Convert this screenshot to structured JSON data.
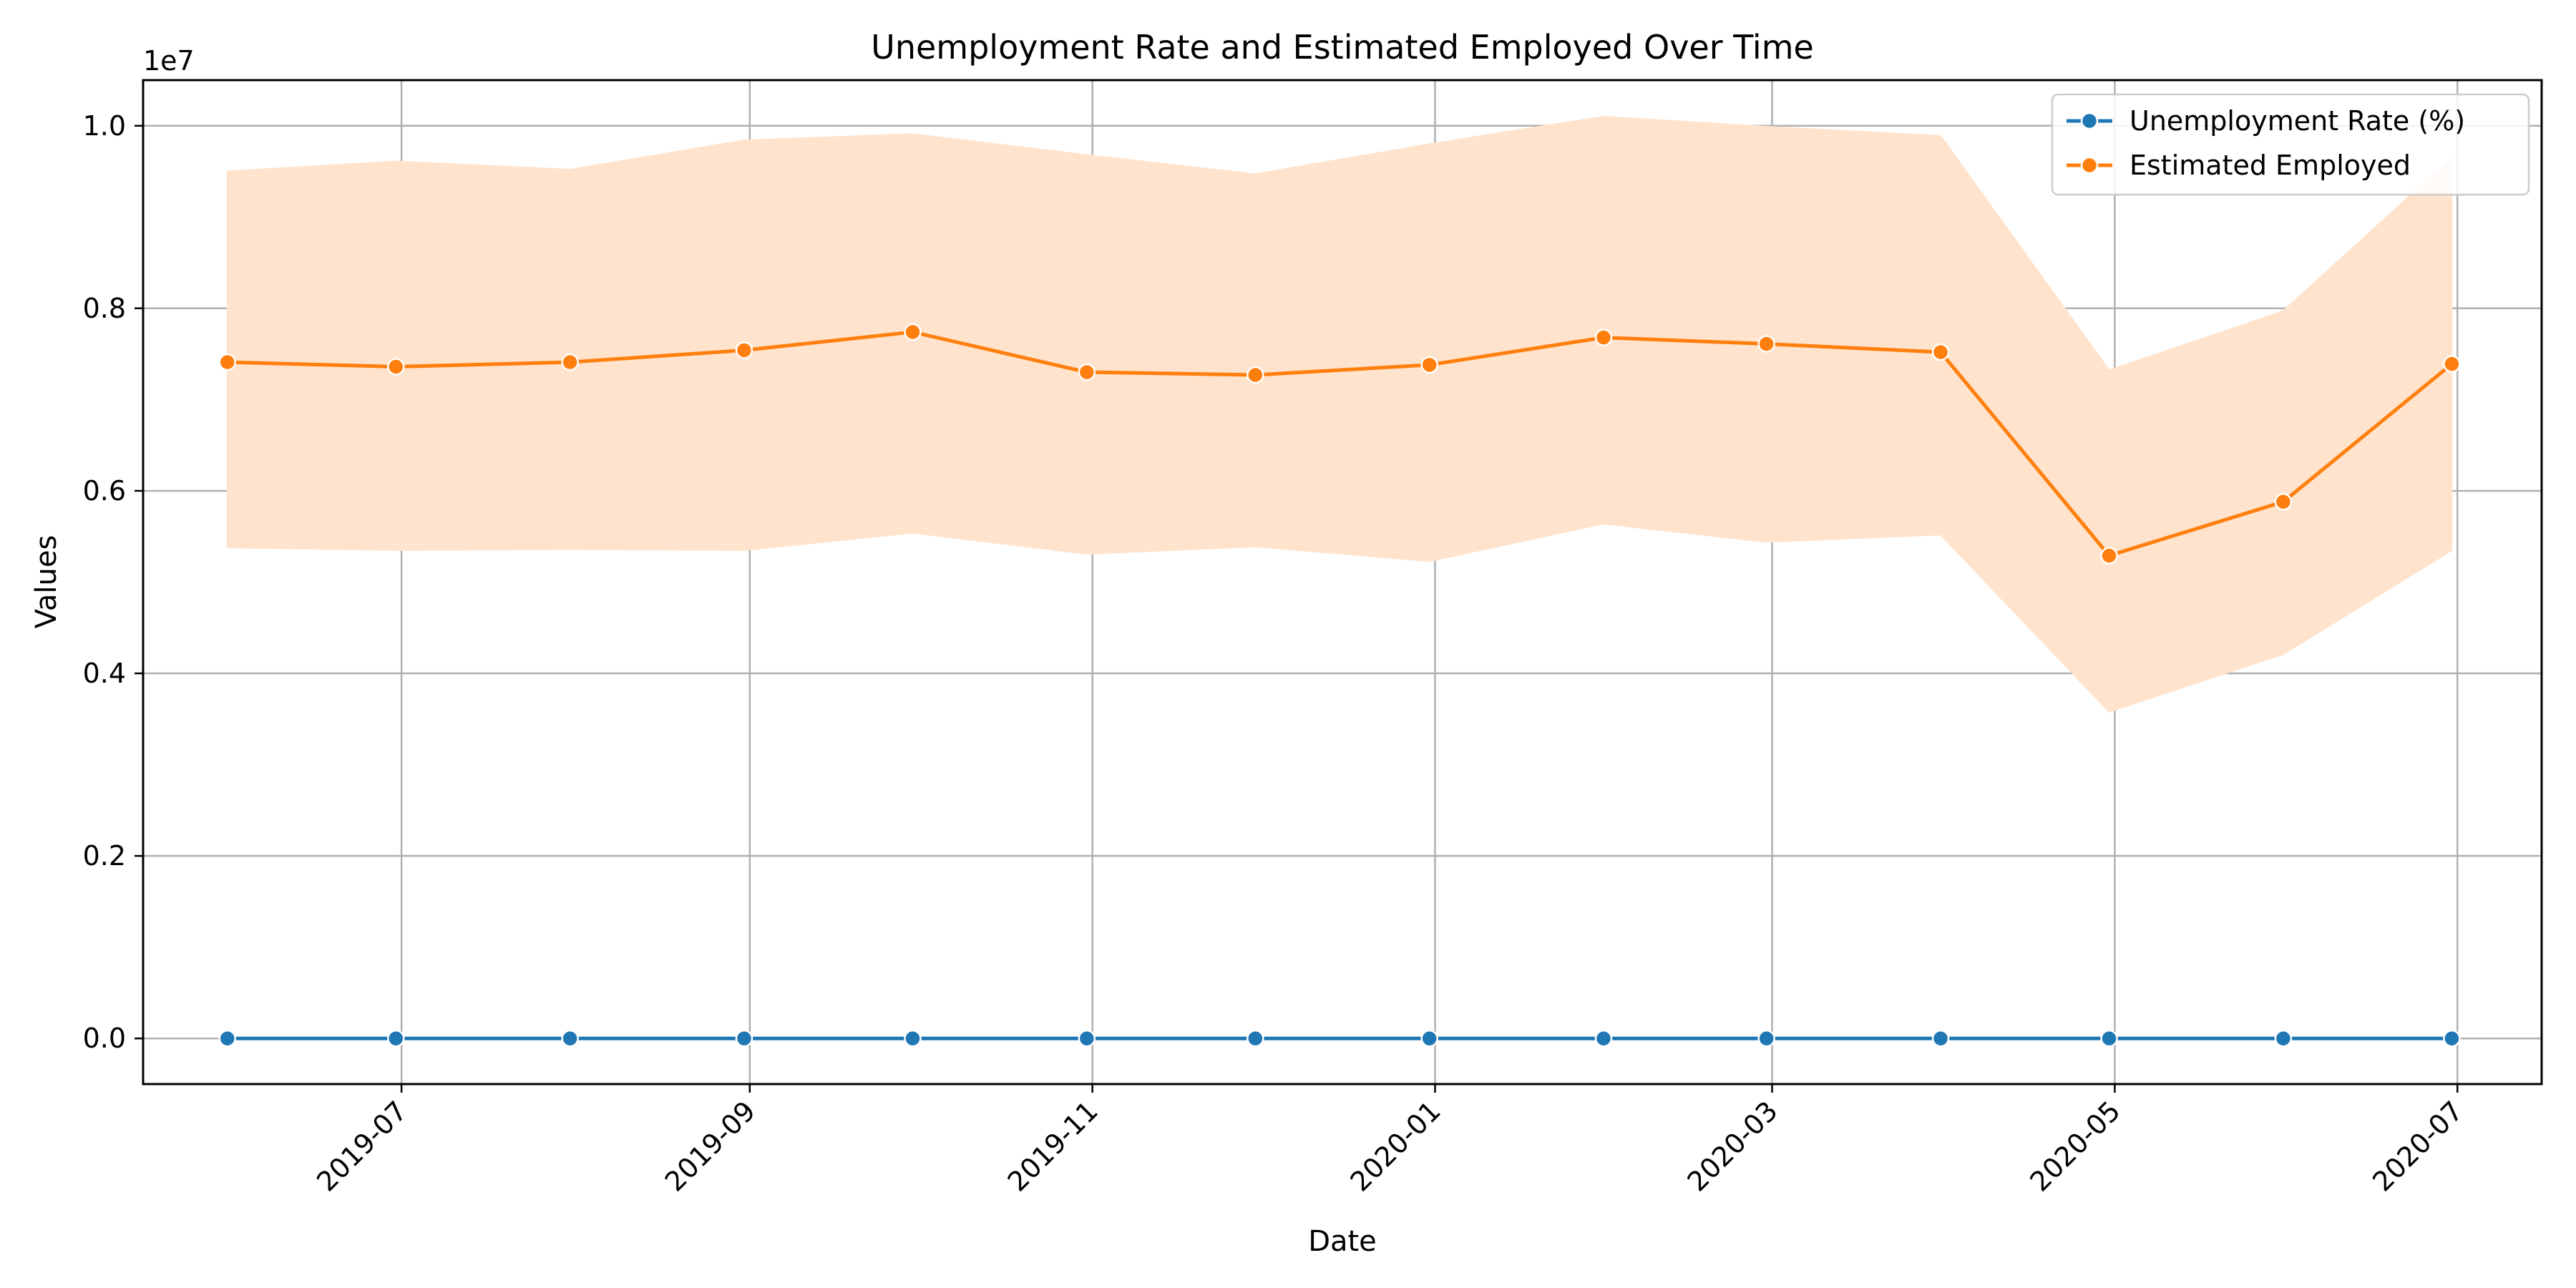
{
  "chart_data": {
    "type": "line",
    "title": "Unemployment Rate and Estimated Employed Over Time",
    "xlabel": "Date",
    "ylabel": "Values",
    "y_offset_label": "1e7",
    "y_scale_multiplier": 10000000,
    "x_dates": [
      "2019-05-31",
      "2019-06-30",
      "2019-07-31",
      "2019-08-31",
      "2019-09-30",
      "2019-10-31",
      "2019-11-30",
      "2019-12-31",
      "2020-01-31",
      "2020-02-29",
      "2020-03-31",
      "2020-04-30",
      "2020-05-31",
      "2020-06-30"
    ],
    "xlim": [
      "2019-05-16",
      "2020-07-16"
    ],
    "x_ticks": [
      {
        "date": "2019-07-01",
        "label": "2019-07"
      },
      {
        "date": "2019-09-01",
        "label": "2019-09"
      },
      {
        "date": "2019-11-01",
        "label": "2019-11"
      },
      {
        "date": "2020-01-01",
        "label": "2020-01"
      },
      {
        "date": "2020-03-01",
        "label": "2020-03"
      },
      {
        "date": "2020-05-01",
        "label": "2020-05"
      },
      {
        "date": "2020-07-01",
        "label": "2020-07"
      }
    ],
    "ylim": [
      -0.05,
      1.05
    ],
    "y_ticks": [
      {
        "value": 0.0,
        "label": "0.0"
      },
      {
        "value": 0.2,
        "label": "0.2"
      },
      {
        "value": 0.4,
        "label": "0.4"
      },
      {
        "value": 0.6,
        "label": "0.6"
      },
      {
        "value": 0.8,
        "label": "0.8"
      },
      {
        "value": 1.0,
        "label": "1.0"
      }
    ],
    "grid": true,
    "legend_position": "top-right",
    "series": [
      {
        "name": "Unemployment Rate (%)",
        "color": "#1f77b4",
        "values": [
          0.0,
          0.0,
          0.0,
          0.0,
          0.0,
          0.0,
          0.0,
          0.0,
          0.0,
          0.0,
          0.0,
          0.0,
          0.0,
          0.0
        ]
      },
      {
        "name": "Estimated Employed",
        "color": "#ff7f0e",
        "band_color": "#ffe3cc",
        "values": [
          0.741,
          0.736,
          0.741,
          0.754,
          0.774,
          0.73,
          0.727,
          0.738,
          0.768,
          0.761,
          0.752,
          0.529,
          0.588,
          0.739
        ],
        "band_upper": [
          0.95,
          0.961,
          0.952,
          0.984,
          0.991,
          0.968,
          0.947,
          0.98,
          1.01,
          0.999,
          0.989,
          0.732,
          0.797,
          0.965
        ],
        "band_lower": [
          0.538,
          0.535,
          0.536,
          0.535,
          0.554,
          0.531,
          0.539,
          0.523,
          0.564,
          0.544,
          0.552,
          0.358,
          0.421,
          0.535
        ]
      }
    ]
  }
}
